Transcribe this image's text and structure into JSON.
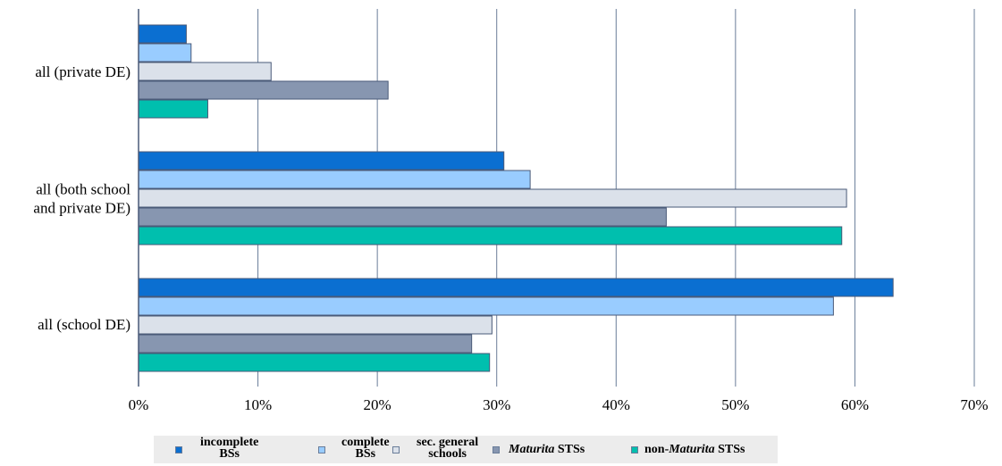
{
  "chart_data": {
    "type": "bar",
    "orientation": "horizontal",
    "categories": [
      "all (school DE)",
      "all (both school and private DE)",
      "all (private DE)"
    ],
    "category_label_lines": [
      [
        "all (school DE)"
      ],
      [
        "all (both school",
        "and private DE)"
      ],
      [
        "all (private DE)"
      ]
    ],
    "series": [
      {
        "name": "incomplete BSs",
        "label_lines": [
          "incomplete",
          "BSs"
        ],
        "color": "#0b6fd1",
        "values": [
          63.2,
          30.6,
          4.0
        ]
      },
      {
        "name": "complete BSs",
        "label_lines": [
          "complete",
          "BSs"
        ],
        "color": "#99ccff",
        "values": [
          58.2,
          32.8,
          4.4
        ]
      },
      {
        "name": "sec. general schools",
        "label_lines": [
          "sec. general",
          "schools"
        ],
        "color": "#dbe1ea",
        "values": [
          29.6,
          59.3,
          11.1
        ]
      },
      {
        "name": "Maturita STSs",
        "label_parts": [
          {
            "text": "Maturita",
            "italic": true
          },
          {
            "text": " STSs",
            "italic": false
          }
        ],
        "color": "#8796b0",
        "values": [
          27.9,
          44.2,
          20.9
        ]
      },
      {
        "name": "non-Maturita STSs",
        "label_parts": [
          {
            "text": "non-",
            "italic": false
          },
          {
            "text": "Maturita",
            "italic": true
          },
          {
            "text": " STSs",
            "italic": false
          }
        ],
        "color": "#00bfae",
        "values": [
          29.4,
          58.9,
          5.8
        ]
      }
    ],
    "xlim": [
      0,
      70
    ],
    "xticks": [
      0,
      10,
      20,
      30,
      40,
      50,
      60,
      70
    ],
    "xtick_labels": [
      "0%",
      "10%",
      "20%",
      "30%",
      "40%",
      "50%",
      "60%",
      "70%"
    ],
    "grid": "vertical",
    "legend_position": "bottom",
    "title": "",
    "xlabel": "",
    "ylabel": ""
  }
}
